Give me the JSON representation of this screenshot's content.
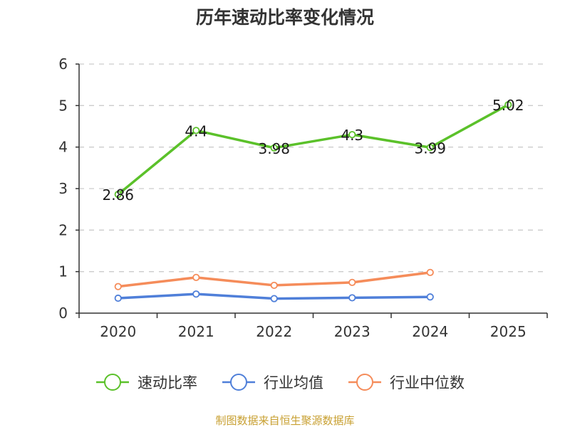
{
  "chart_data": {
    "type": "line",
    "title": "历年速动比率变化情况",
    "categories": [
      "2020",
      "2021",
      "2022",
      "2023",
      "2024",
      "2025"
    ],
    "ylim": [
      0,
      6
    ],
    "yticks": [
      "0",
      "1",
      "2",
      "3",
      "4",
      "5",
      "6"
    ],
    "grid": true,
    "legend_position": "bottom",
    "series": [
      {
        "name": "速动比率",
        "color": "#5bc12a",
        "values": [
          2.86,
          4.4,
          3.98,
          4.3,
          3.99,
          5.02
        ],
        "labels": [
          "2.86",
          "4.4",
          "3.98",
          "4.3",
          "3.99",
          "5.02"
        ]
      },
      {
        "name": "行业均值",
        "color": "#4f7fd9",
        "values": [
          0.36,
          0.46,
          0.35,
          0.37,
          0.39,
          null
        ]
      },
      {
        "name": "行业中位数",
        "color": "#f58c5a",
        "values": [
          0.64,
          0.86,
          0.67,
          0.74,
          0.98,
          null
        ]
      }
    ]
  },
  "source_text": "制图数据来自恒生聚源数据库"
}
